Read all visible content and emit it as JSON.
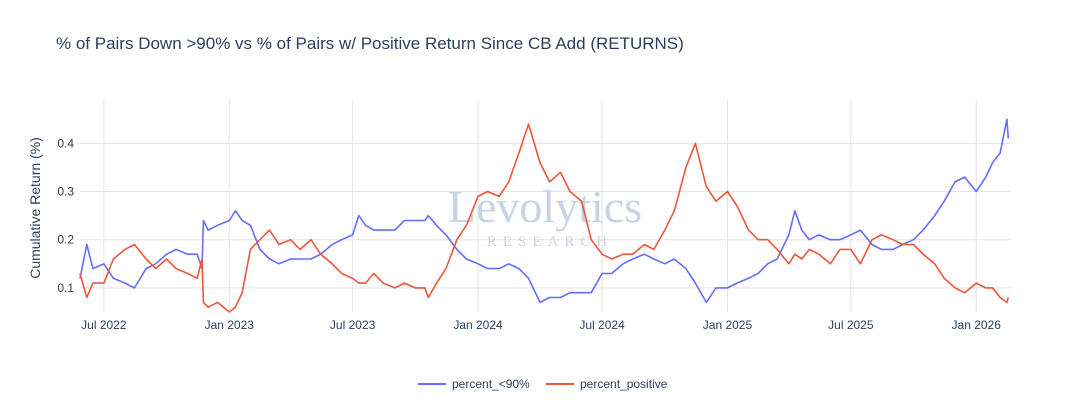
{
  "chart_data": {
    "type": "line",
    "title": "% of Pairs Down >90% vs % of Pairs w/ Positive Return Since CB Add (RETURNS)",
    "ylabel": "Cumulative Return (%)",
    "xlabel": "",
    "x_ticks": [
      "Jul 2022",
      "Jan 2023",
      "Jul 2023",
      "Jan 2024",
      "Jul 2024",
      "Jan 2025",
      "Jul 2025",
      "Jan 2026"
    ],
    "y_ticks": [
      "0.1",
      "0.2",
      "0.3",
      "0.4"
    ],
    "xlim": [
      "2022-05-27",
      "2026-02-21"
    ],
    "ylim": [
      0.05,
      0.49
    ],
    "grid": true,
    "legend_position": "bottom-center",
    "series": [
      {
        "name": "percent_<90%",
        "color": "#636efa",
        "points": [
          [
            "2022-05-27",
            0.12
          ],
          [
            "2022-06-06",
            0.19
          ],
          [
            "2022-06-15",
            0.14
          ],
          [
            "2022-07-01",
            0.15
          ],
          [
            "2022-07-15",
            0.12
          ],
          [
            "2022-08-01",
            0.11
          ],
          [
            "2022-08-15",
            0.1
          ],
          [
            "2022-09-01",
            0.14
          ],
          [
            "2022-09-15",
            0.15
          ],
          [
            "2022-10-01",
            0.17
          ],
          [
            "2022-10-15",
            0.18
          ],
          [
            "2022-11-01",
            0.17
          ],
          [
            "2022-11-15",
            0.17
          ],
          [
            "2022-11-22",
            0.14
          ],
          [
            "2022-11-24",
            0.24
          ],
          [
            "2022-12-01",
            0.22
          ],
          [
            "2022-12-15",
            0.23
          ],
          [
            "2023-01-01",
            0.24
          ],
          [
            "2023-01-10",
            0.26
          ],
          [
            "2023-01-20",
            0.24
          ],
          [
            "2023-02-01",
            0.23
          ],
          [
            "2023-02-15",
            0.18
          ],
          [
            "2023-03-01",
            0.16
          ],
          [
            "2023-03-15",
            0.15
          ],
          [
            "2023-04-01",
            0.16
          ],
          [
            "2023-04-15",
            0.16
          ],
          [
            "2023-05-01",
            0.16
          ],
          [
            "2023-05-15",
            0.17
          ],
          [
            "2023-06-01",
            0.19
          ],
          [
            "2023-06-15",
            0.2
          ],
          [
            "2023-07-01",
            0.21
          ],
          [
            "2023-07-10",
            0.25
          ],
          [
            "2023-07-20",
            0.23
          ],
          [
            "2023-08-01",
            0.22
          ],
          [
            "2023-08-15",
            0.22
          ],
          [
            "2023-09-01",
            0.22
          ],
          [
            "2023-09-15",
            0.24
          ],
          [
            "2023-10-01",
            0.24
          ],
          [
            "2023-10-15",
            0.24
          ],
          [
            "2023-10-20",
            0.25
          ],
          [
            "2023-11-01",
            0.23
          ],
          [
            "2023-11-15",
            0.21
          ],
          [
            "2023-12-01",
            0.18
          ],
          [
            "2023-12-15",
            0.16
          ],
          [
            "2024-01-01",
            0.15
          ],
          [
            "2024-01-15",
            0.14
          ],
          [
            "2024-02-01",
            0.14
          ],
          [
            "2024-02-15",
            0.15
          ],
          [
            "2024-03-01",
            0.14
          ],
          [
            "2024-03-15",
            0.12
          ],
          [
            "2024-04-01",
            0.07
          ],
          [
            "2024-04-15",
            0.08
          ],
          [
            "2024-05-01",
            0.08
          ],
          [
            "2024-05-15",
            0.09
          ],
          [
            "2024-06-01",
            0.09
          ],
          [
            "2024-06-15",
            0.09
          ],
          [
            "2024-07-01",
            0.13
          ],
          [
            "2024-07-15",
            0.13
          ],
          [
            "2024-08-01",
            0.15
          ],
          [
            "2024-08-15",
            0.16
          ],
          [
            "2024-09-01",
            0.17
          ],
          [
            "2024-09-15",
            0.16
          ],
          [
            "2024-10-01",
            0.15
          ],
          [
            "2024-10-15",
            0.16
          ],
          [
            "2024-11-01",
            0.14
          ],
          [
            "2024-11-15",
            0.11
          ],
          [
            "2024-12-01",
            0.07
          ],
          [
            "2024-12-15",
            0.1
          ],
          [
            "2025-01-01",
            0.1
          ],
          [
            "2025-01-15",
            0.11
          ],
          [
            "2025-02-01",
            0.12
          ],
          [
            "2025-02-15",
            0.13
          ],
          [
            "2025-03-01",
            0.15
          ],
          [
            "2025-03-15",
            0.16
          ],
          [
            "2025-04-01",
            0.21
          ],
          [
            "2025-04-10",
            0.26
          ],
          [
            "2025-04-20",
            0.22
          ],
          [
            "2025-05-01",
            0.2
          ],
          [
            "2025-05-15",
            0.21
          ],
          [
            "2025-06-01",
            0.2
          ],
          [
            "2025-06-15",
            0.2
          ],
          [
            "2025-07-01",
            0.21
          ],
          [
            "2025-07-15",
            0.22
          ],
          [
            "2025-08-01",
            0.19
          ],
          [
            "2025-08-15",
            0.18
          ],
          [
            "2025-09-01",
            0.18
          ],
          [
            "2025-09-15",
            0.19
          ],
          [
            "2025-10-01",
            0.2
          ],
          [
            "2025-10-15",
            0.22
          ],
          [
            "2025-11-01",
            0.25
          ],
          [
            "2025-11-15",
            0.28
          ],
          [
            "2025-12-01",
            0.32
          ],
          [
            "2025-12-15",
            0.33
          ],
          [
            "2026-01-01",
            0.3
          ],
          [
            "2026-01-15",
            0.33
          ],
          [
            "2026-01-25",
            0.36
          ],
          [
            "2026-02-05",
            0.38
          ],
          [
            "2026-02-15",
            0.45
          ],
          [
            "2026-02-17",
            0.41
          ]
        ]
      },
      {
        "name": "percent_positive",
        "color": "#ef553b",
        "points": [
          [
            "2022-05-27",
            0.13
          ],
          [
            "2022-06-06",
            0.08
          ],
          [
            "2022-06-15",
            0.11
          ],
          [
            "2022-07-01",
            0.11
          ],
          [
            "2022-07-15",
            0.16
          ],
          [
            "2022-08-01",
            0.18
          ],
          [
            "2022-08-15",
            0.19
          ],
          [
            "2022-09-01",
            0.16
          ],
          [
            "2022-09-15",
            0.14
          ],
          [
            "2022-10-01",
            0.16
          ],
          [
            "2022-10-15",
            0.14
          ],
          [
            "2022-11-01",
            0.13
          ],
          [
            "2022-11-15",
            0.12
          ],
          [
            "2022-11-22",
            0.16
          ],
          [
            "2022-11-24",
            0.07
          ],
          [
            "2022-12-01",
            0.06
          ],
          [
            "2022-12-15",
            0.07
          ],
          [
            "2023-01-01",
            0.05
          ],
          [
            "2023-01-10",
            0.06
          ],
          [
            "2023-01-20",
            0.09
          ],
          [
            "2023-02-01",
            0.18
          ],
          [
            "2023-02-15",
            0.2
          ],
          [
            "2023-03-01",
            0.22
          ],
          [
            "2023-03-15",
            0.19
          ],
          [
            "2023-04-01",
            0.2
          ],
          [
            "2023-04-15",
            0.18
          ],
          [
            "2023-05-01",
            0.2
          ],
          [
            "2023-05-15",
            0.17
          ],
          [
            "2023-06-01",
            0.15
          ],
          [
            "2023-06-15",
            0.13
          ],
          [
            "2023-07-01",
            0.12
          ],
          [
            "2023-07-10",
            0.11
          ],
          [
            "2023-07-20",
            0.11
          ],
          [
            "2023-08-01",
            0.13
          ],
          [
            "2023-08-15",
            0.11
          ],
          [
            "2023-09-01",
            0.1
          ],
          [
            "2023-09-15",
            0.11
          ],
          [
            "2023-10-01",
            0.1
          ],
          [
            "2023-10-15",
            0.1
          ],
          [
            "2023-10-20",
            0.08
          ],
          [
            "2023-11-01",
            0.11
          ],
          [
            "2023-11-15",
            0.14
          ],
          [
            "2023-12-01",
            0.2
          ],
          [
            "2023-12-15",
            0.23
          ],
          [
            "2024-01-01",
            0.29
          ],
          [
            "2024-01-15",
            0.3
          ],
          [
            "2024-02-01",
            0.29
          ],
          [
            "2024-02-15",
            0.32
          ],
          [
            "2024-03-01",
            0.38
          ],
          [
            "2024-03-15",
            0.44
          ],
          [
            "2024-04-01",
            0.36
          ],
          [
            "2024-04-15",
            0.32
          ],
          [
            "2024-05-01",
            0.34
          ],
          [
            "2024-05-15",
            0.3
          ],
          [
            "2024-06-01",
            0.28
          ],
          [
            "2024-06-15",
            0.2
          ],
          [
            "2024-07-01",
            0.17
          ],
          [
            "2024-07-15",
            0.16
          ],
          [
            "2024-08-01",
            0.17
          ],
          [
            "2024-08-15",
            0.17
          ],
          [
            "2024-09-01",
            0.19
          ],
          [
            "2024-09-15",
            0.18
          ],
          [
            "2024-10-01",
            0.22
          ],
          [
            "2024-10-15",
            0.26
          ],
          [
            "2024-11-01",
            0.35
          ],
          [
            "2024-11-15",
            0.4
          ],
          [
            "2024-12-01",
            0.31
          ],
          [
            "2024-12-15",
            0.28
          ],
          [
            "2025-01-01",
            0.3
          ],
          [
            "2025-01-15",
            0.27
          ],
          [
            "2025-02-01",
            0.22
          ],
          [
            "2025-02-15",
            0.2
          ],
          [
            "2025-03-01",
            0.2
          ],
          [
            "2025-03-15",
            0.18
          ],
          [
            "2025-04-01",
            0.15
          ],
          [
            "2025-04-10",
            0.17
          ],
          [
            "2025-04-20",
            0.16
          ],
          [
            "2025-05-01",
            0.18
          ],
          [
            "2025-05-15",
            0.17
          ],
          [
            "2025-06-01",
            0.15
          ],
          [
            "2025-06-15",
            0.18
          ],
          [
            "2025-07-01",
            0.18
          ],
          [
            "2025-07-15",
            0.15
          ],
          [
            "2025-08-01",
            0.2
          ],
          [
            "2025-08-15",
            0.21
          ],
          [
            "2025-09-01",
            0.2
          ],
          [
            "2025-09-15",
            0.19
          ],
          [
            "2025-10-01",
            0.19
          ],
          [
            "2025-10-15",
            0.17
          ],
          [
            "2025-11-01",
            0.15
          ],
          [
            "2025-11-15",
            0.12
          ],
          [
            "2025-12-01",
            0.1
          ],
          [
            "2025-12-15",
            0.09
          ],
          [
            "2026-01-01",
            0.11
          ],
          [
            "2026-01-15",
            0.1
          ],
          [
            "2026-01-25",
            0.1
          ],
          [
            "2026-02-05",
            0.08
          ],
          [
            "2026-02-15",
            0.07
          ],
          [
            "2026-02-17",
            0.08
          ]
        ]
      }
    ]
  },
  "watermark": {
    "main": "Levolytics",
    "sub": "RESEARCH",
    "color": "#c9d3e3"
  }
}
